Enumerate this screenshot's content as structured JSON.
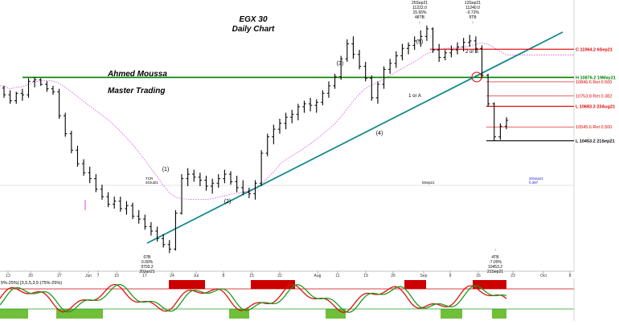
{
  "chart_data": {
    "type": "candlestick",
    "title": "EGX 30",
    "subtitle": "Daily Chart",
    "watermark_lines": [
      "Ahmed Moussa",
      "Master Trading"
    ],
    "x_tick_labels": [
      "13",
      "20",
      "27",
      "Jun",
      "7",
      "10",
      "17",
      "24",
      "Jul",
      "8",
      "15",
      "22",
      "Aug",
      "11",
      "19",
      "26",
      "Sep",
      "9",
      "16",
      "23",
      "Oct",
      "8"
    ],
    "price_min": 9700,
    "price_max": 11350,
    "colors": {
      "price": "#000000",
      "green_line": "#008000",
      "trendline": "#16898a",
      "red_level": "#e00000",
      "ma": "#e060e0",
      "osc_green": "#1e9a1e",
      "osc_red": "#e01010",
      "band": "#cc0000"
    },
    "wave_labels": [
      "(1)",
      "(2)",
      "(3)",
      "(4)",
      "(5)",
      "1 or A",
      "2 or B"
    ],
    "levels": [
      {
        "label": "C 11064.2 6Sep21",
        "price": 11064.2,
        "color": "#e00000",
        "bold": true
      },
      {
        "label": "H 10876.2 19May21",
        "price": 10876.2,
        "color": "#008000",
        "bold": true
      },
      {
        "label": "10846.6 Ret 0.500",
        "price": 10846.6,
        "color": "#e00000",
        "bold": false
      },
      {
        "label": "10753.8 Ret 0.382",
        "price": 10753.8,
        "color": "#e00000",
        "bold": false
      },
      {
        "label": "L 10683.3 23Aug21",
        "price": 10683.3,
        "color": "#e00000",
        "bold": true
      },
      {
        "label": "10545.6 Ret 0.500",
        "price": 10545.6,
        "color": "#e00000",
        "bold": false
      },
      {
        "label": "L 10453.2 21Sep21",
        "price": 10453.2,
        "color": "#000000",
        "bold": true
      }
    ],
    "annotations": {
      "low_box": [
        "07B",
        "0.00%",
        "9703.2",
        "20Jun21"
      ],
      "top_box_1": [
        "25Sep21",
        "11222.0",
        "15.65%",
        "48TB"
      ],
      "top_box_2": [
        "13Sep21",
        "11240.0",
        "-0.72%",
        "9TB"
      ],
      "bottom_box": [
        "4TB",
        "-7.00%",
        "10453.2",
        "21Sep21"
      ],
      "mid_small_1": [
        "TCR",
        "20Jul21"
      ],
      "mid_small_2": "5Sep21",
      "mid_small_3": [
        "20Sep21",
        "0.387"
      ]
    },
    "osc_label": "5%-25%) [3,5,5,3,5 (75%-25%)",
    "osc_bands": [
      {
        "start": 210,
        "end": 255
      },
      {
        "start": 312,
        "end": 367
      },
      {
        "start": 503,
        "end": 530
      },
      {
        "start": 588,
        "end": 630
      }
    ],
    "candles": [
      [
        10805,
        10820,
        10740,
        10760
      ],
      [
        10760,
        10790,
        10700,
        10720
      ],
      [
        10720,
        10780,
        10700,
        10770
      ],
      [
        10770,
        10800,
        10720,
        10760
      ],
      [
        10760,
        10870,
        10740,
        10850
      ],
      [
        10850,
        10880,
        10810,
        10860
      ],
      [
        10860,
        10870,
        10820,
        10830
      ],
      [
        10830,
        10850,
        10780,
        10800
      ],
      [
        10800,
        10820,
        10760,
        10780
      ],
      [
        10780,
        10800,
        10600,
        10620
      ],
      [
        10620,
        10640,
        10480,
        10500
      ],
      [
        10500,
        10520,
        10370,
        10390
      ],
      [
        10390,
        10420,
        10280,
        10300
      ],
      [
        10300,
        10330,
        10220,
        10240
      ],
      [
        10240,
        10280,
        10170,
        10200
      ],
      [
        10200,
        10230,
        10110,
        10130
      ],
      [
        10130,
        10160,
        10060,
        10080
      ],
      [
        10080,
        10110,
        10010,
        10030
      ],
      [
        10030,
        10080,
        10000,
        10050
      ],
      [
        10050,
        10080,
        9980,
        10000
      ],
      [
        10000,
        10050,
        9960,
        10020
      ],
      [
        10020,
        10040,
        9930,
        9950
      ],
      [
        9950,
        9990,
        9900,
        9930
      ],
      [
        9930,
        9960,
        9860,
        9880
      ],
      [
        9880,
        9910,
        9820,
        9850
      ],
      [
        9850,
        9880,
        9780,
        9800
      ],
      [
        9800,
        9830,
        9740,
        9760
      ],
      [
        9760,
        9790,
        9703,
        9730
      ],
      [
        9730,
        9990,
        9720,
        9970
      ],
      [
        9970,
        10230,
        9960,
        10200
      ],
      [
        10200,
        10270,
        10150,
        10230
      ],
      [
        10230,
        10260,
        10180,
        10210
      ],
      [
        10210,
        10240,
        10150,
        10190
      ],
      [
        10190,
        10220,
        10120,
        10150
      ],
      [
        10150,
        10200,
        10100,
        10170
      ],
      [
        10170,
        10230,
        10140,
        10200
      ],
      [
        10200,
        10260,
        10170,
        10230
      ],
      [
        10230,
        10250,
        10160,
        10180
      ],
      [
        10180,
        10220,
        10110,
        10140
      ],
      [
        10140,
        10190,
        10090,
        10110
      ],
      [
        10110,
        10140,
        10070,
        10100
      ],
      [
        10100,
        10190,
        10060,
        10170
      ],
      [
        10170,
        10390,
        10150,
        10370
      ],
      [
        10370,
        10500,
        10350,
        10480
      ],
      [
        10480,
        10560,
        10430,
        10530
      ],
      [
        10530,
        10600,
        10500,
        10570
      ],
      [
        10570,
        10640,
        10530,
        10610
      ],
      [
        10610,
        10660,
        10570,
        10630
      ],
      [
        10630,
        10700,
        10590,
        10680
      ],
      [
        10680,
        10720,
        10640,
        10700
      ],
      [
        10700,
        10740,
        10650,
        10690
      ],
      [
        10690,
        10730,
        10640,
        10710
      ],
      [
        10710,
        10790,
        10690,
        10770
      ],
      [
        10770,
        10850,
        10740,
        10820
      ],
      [
        10820,
        10900,
        10800,
        10880
      ],
      [
        10880,
        11020,
        10860,
        11000
      ],
      [
        11000,
        11130,
        10980,
        11100
      ],
      [
        11100,
        11150,
        11000,
        11030
      ],
      [
        11030,
        11060,
        10930,
        10950
      ],
      [
        10950,
        10980,
        10850,
        10870
      ],
      [
        10870,
        10890,
        10720,
        10740
      ],
      [
        10740,
        10850,
        10700,
        10830
      ],
      [
        10830,
        10950,
        10800,
        10930
      ],
      [
        10930,
        11000,
        10900,
        10970
      ],
      [
        10970,
        11050,
        10940,
        11020
      ],
      [
        11020,
        11100,
        10990,
        11070
      ],
      [
        11070,
        11110,
        11030,
        11090
      ],
      [
        11090,
        11150,
        11060,
        11120
      ],
      [
        11120,
        11190,
        11080,
        11150
      ],
      [
        11150,
        11222,
        11120,
        11200
      ],
      [
        11200,
        11210,
        11040,
        11060
      ],
      [
        11060,
        11100,
        10980,
        11010
      ],
      [
        11010,
        11060,
        10990,
        11040
      ],
      [
        11040,
        11090,
        11010,
        11060
      ],
      [
        11060,
        11110,
        11030,
        11080
      ],
      [
        11080,
        11140,
        11050,
        11110
      ],
      [
        11110,
        11160,
        11080,
        11120
      ],
      [
        11120,
        11150,
        11040,
        11070
      ],
      [
        11070,
        11090,
        10870,
        10890
      ],
      [
        10890,
        10900,
        10680,
        10700
      ],
      [
        10700,
        10710,
        10453,
        10480
      ],
      [
        10480,
        10570,
        10460,
        10550
      ],
      [
        10550,
        10610,
        10530,
        10590
      ]
    ]
  }
}
